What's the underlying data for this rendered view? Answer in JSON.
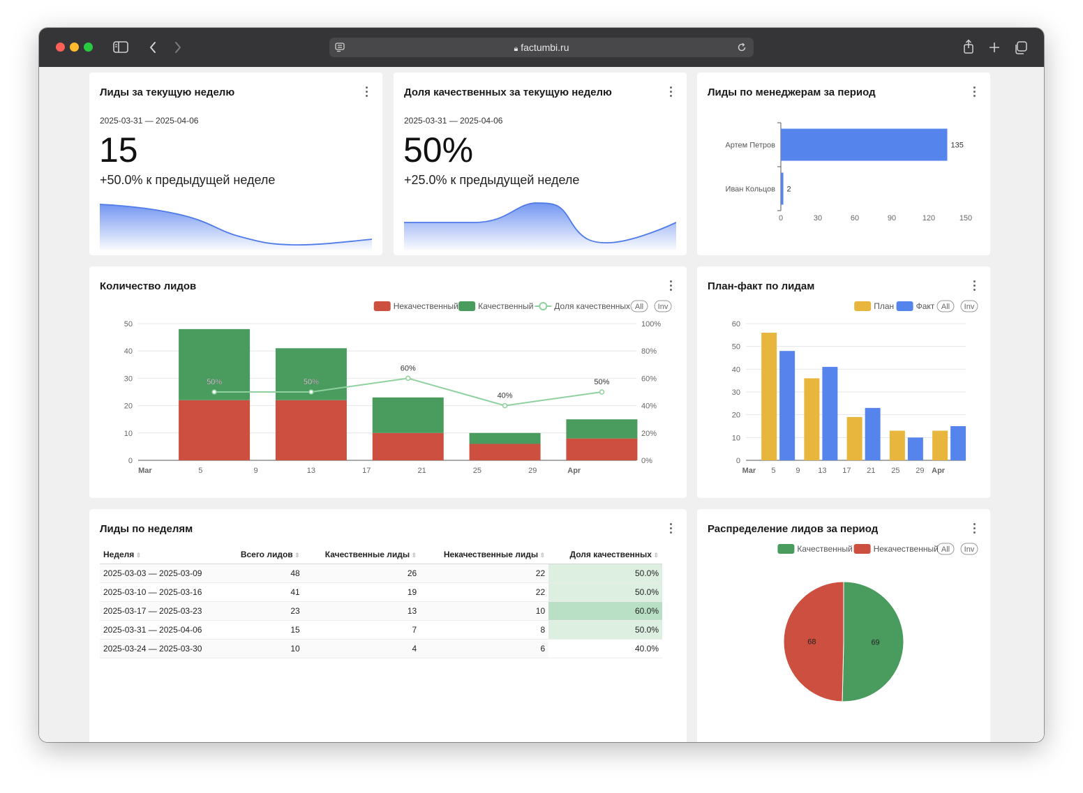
{
  "browser": {
    "url": "factumbi.ru"
  },
  "kpi_leads": {
    "title": "Лиды за текущую неделю",
    "date_range": "2025-03-31 — 2025-04-06",
    "value": "15",
    "change": "+50.0% к предыдущей неделе"
  },
  "kpi_quality": {
    "title": "Доля качественных за текущую неделю",
    "date_range": "2025-03-31 — 2025-04-06",
    "value": "50%",
    "change": "+25.0% к предыдущей неделе"
  },
  "managers_chart": {
    "title": "Лиды по менеджерам за период",
    "chart_data": {
      "type": "bar",
      "orientation": "horizontal",
      "categories": [
        "Артем Петров",
        "Иван Кольцов"
      ],
      "values": [
        135,
        2
      ],
      "xlim": [
        0,
        150
      ],
      "x_ticks": [
        "0",
        "30",
        "60",
        "90",
        "120",
        "150"
      ],
      "color": "#5585ec"
    }
  },
  "leads_count_chart": {
    "title": "Количество лидов",
    "legend": [
      "Некачественный",
      "Качественный",
      "Доля качественных"
    ],
    "legend_buttons": [
      "All",
      "Inv"
    ],
    "chart_data": {
      "type": "bar",
      "stacked": true,
      "x": [
        "2025-03-03",
        "2025-03-10",
        "2025-03-17",
        "2025-03-24",
        "2025-03-31"
      ],
      "x_ticks": [
        "Mar",
        "5",
        "9",
        "13",
        "17",
        "21",
        "25",
        "29",
        "Apr"
      ],
      "series": [
        {
          "name": "Некачественный",
          "values": [
            22,
            22,
            10,
            6,
            8
          ],
          "color": "#cc4f3f"
        },
        {
          "name": "Качественный",
          "values": [
            26,
            19,
            13,
            4,
            7
          ],
          "color": "#4a9c5e"
        },
        {
          "name": "Доля качественных",
          "type": "line",
          "axis": "right",
          "values": [
            50,
            50,
            60,
            40,
            50
          ],
          "labels": [
            "50%",
            "50%",
            "60%",
            "40%",
            "50%"
          ],
          "color": "#8fd19e"
        }
      ],
      "ylim": [
        0,
        50
      ],
      "y_ticks": [
        "0",
        "10",
        "20",
        "30",
        "40",
        "50"
      ],
      "y2lim": [
        0,
        100
      ],
      "y2_ticks": [
        "0%",
        "20%",
        "40%",
        "60%",
        "80%",
        "100%"
      ],
      "grid": true
    }
  },
  "plan_fact_chart": {
    "title": "План-факт по лидам",
    "legend": [
      "План",
      "Факт"
    ],
    "legend_buttons": [
      "All",
      "Inv"
    ],
    "chart_data": {
      "type": "bar",
      "x": [
        "2025-03-03",
        "2025-03-10",
        "2025-03-17",
        "2025-03-24",
        "2025-03-31"
      ],
      "x_ticks": [
        "Mar",
        "5",
        "9",
        "13",
        "17",
        "21",
        "25",
        "29",
        "Apr"
      ],
      "series": [
        {
          "name": "План",
          "values": [
            56,
            36,
            19,
            13,
            13
          ],
          "color": "#e8b63c"
        },
        {
          "name": "Факт",
          "values": [
            48,
            41,
            23,
            10,
            15
          ],
          "color": "#5585ec"
        }
      ],
      "ylim": [
        0,
        60
      ],
      "y_ticks": [
        "0",
        "10",
        "20",
        "30",
        "40",
        "50",
        "60"
      ],
      "grid": true
    }
  },
  "weekly_table": {
    "title": "Лиды по неделям",
    "columns": [
      "Неделя",
      "Всего лидов",
      "Качественные лиды",
      "Некачественные лиды",
      "Доля качественных"
    ],
    "rows": [
      [
        "2025-03-03 — 2025-03-09",
        "48",
        "26",
        "22",
        "50.0%"
      ],
      [
        "2025-03-10 — 2025-03-16",
        "41",
        "19",
        "22",
        "50.0%"
      ],
      [
        "2025-03-17 — 2025-03-23",
        "23",
        "13",
        "10",
        "60.0%"
      ],
      [
        "2025-03-31 — 2025-04-06",
        "15",
        "7",
        "8",
        "50.0%"
      ],
      [
        "2025-03-24 — 2025-03-30",
        "10",
        "4",
        "6",
        "40.0%"
      ]
    ],
    "highlight_colors": [
      "#dcefe1",
      "#dcefe1",
      "#b9e0c4",
      "#dcefe1",
      "#ffffff"
    ]
  },
  "distribution_chart": {
    "title": "Распределение лидов за период",
    "legend": [
      "Качественный",
      "Некачественный"
    ],
    "legend_buttons": [
      "All",
      "Inv"
    ],
    "chart_data": {
      "type": "pie",
      "categories": [
        "Качественный",
        "Некачественный"
      ],
      "values": [
        69,
        68
      ],
      "colors": [
        "#4a9c5e",
        "#cc4f3f"
      ]
    }
  }
}
